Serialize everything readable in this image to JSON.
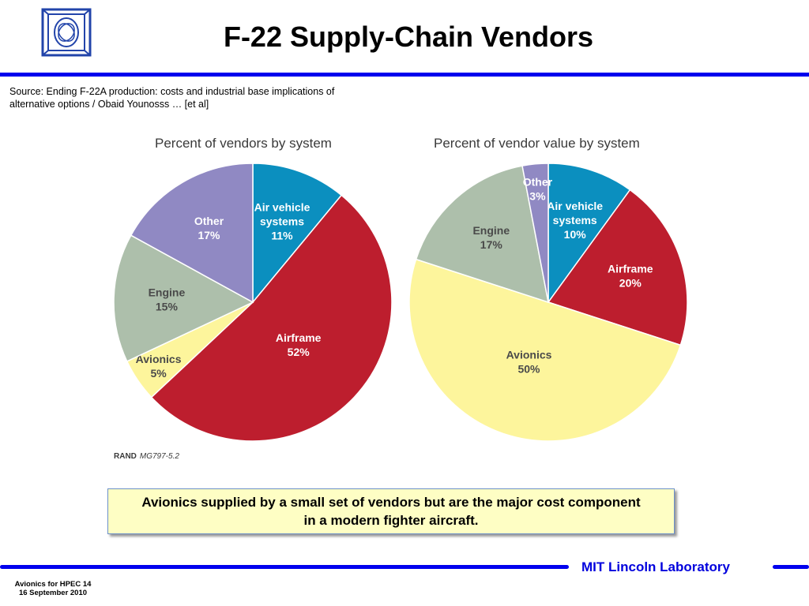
{
  "title": "F-22 Supply-Chain Vendors",
  "source": {
    "line1": "Source: Ending F-22A production:  costs and industrial base implications of",
    "line2": "alternative options / Obaid Younosss … [et al]"
  },
  "callout": "Avionics supplied by a small set of vendors but are the major cost component in a modern fighter aircraft.",
  "footer": {
    "line1": "Avionics for HPEC  14",
    "line2": "16 September 2010"
  },
  "lab_name": "MIT Lincoln Laboratory",
  "colors": {
    "accent_blue": "#0000ee",
    "callout_bg": "#fefec4"
  },
  "chart_data": [
    {
      "type": "pie",
      "title": "Percent of vendors by system",
      "credit_org": "RAND",
      "credit_ref": "MG797-5.2",
      "slices": [
        {
          "label": "Air vehicle systems",
          "lines": [
            "Air vehicle",
            "systems",
            "11%"
          ],
          "value": 11,
          "color": "#0b8fbf"
        },
        {
          "label": "Airframe",
          "lines": [
            "Airframe",
            "52%"
          ],
          "value": 52,
          "color": "#bd1e2e"
        },
        {
          "label": "Avionics",
          "lines": [
            "Avionics",
            "5%"
          ],
          "value": 5,
          "color": "#fdf59c"
        },
        {
          "label": "Engine",
          "lines": [
            "Engine",
            "15%"
          ],
          "value": 15,
          "color": "#adbfab"
        },
        {
          "label": "Other",
          "lines": [
            "Other",
            "17%"
          ],
          "value": 17,
          "color": "#9089c3"
        }
      ]
    },
    {
      "type": "pie",
      "title": "Percent of vendor value by system",
      "slices": [
        {
          "label": "Air vehicle systems",
          "lines": [
            "Air vehicle",
            "systems",
            "10%"
          ],
          "value": 10,
          "color": "#0b8fbf"
        },
        {
          "label": "Airframe",
          "lines": [
            "Airframe",
            "20%"
          ],
          "value": 20,
          "color": "#bd1e2e"
        },
        {
          "label": "Avionics",
          "lines": [
            "Avionics",
            "50%"
          ],
          "value": 50,
          "color": "#fdf59c"
        },
        {
          "label": "Engine",
          "lines": [
            "Engine",
            "17%"
          ],
          "value": 17,
          "color": "#adbfab"
        },
        {
          "label": "Other",
          "lines": [
            "Other",
            "3%"
          ],
          "value": 3,
          "color": "#9089c3"
        }
      ]
    }
  ]
}
